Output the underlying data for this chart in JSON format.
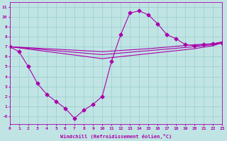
{
  "xlabel": "Windchill (Refroidissement éolien,°C)",
  "xlim": [
    0,
    23
  ],
  "ylim": [
    -0.8,
    11.5
  ],
  "ytick_vals": [
    0,
    1,
    2,
    3,
    4,
    5,
    6,
    7,
    8,
    9,
    10,
    11
  ],
  "ytick_labels": [
    "-0",
    "1",
    "2",
    "3",
    "4",
    "5",
    "6",
    "7",
    "8",
    "9",
    "10",
    "11"
  ],
  "xticks": [
    0,
    1,
    2,
    3,
    4,
    5,
    6,
    7,
    8,
    9,
    10,
    11,
    12,
    13,
    14,
    15,
    16,
    17,
    18,
    19,
    20,
    21,
    22,
    23
  ],
  "bg_color": "#c0e4e4",
  "line_color": "#aa00aa",
  "grid_color": "#99cccc",
  "s1_x": [
    0,
    1,
    2,
    3,
    4,
    5,
    6,
    7,
    8,
    9,
    10,
    11,
    12,
    13,
    14,
    15,
    16,
    17,
    18,
    19,
    20,
    21,
    22,
    23
  ],
  "s1_y": [
    7.0,
    6.5,
    5.0,
    3.3,
    2.2,
    1.5,
    0.8,
    -0.2,
    0.6,
    1.2,
    2.0,
    5.5,
    8.2,
    10.4,
    10.6,
    10.2,
    9.3,
    8.2,
    7.8,
    7.2,
    7.1,
    7.2,
    7.3,
    7.4
  ],
  "s2_x": [
    0,
    10,
    20,
    22,
    23
  ],
  "s2_y": [
    7.0,
    5.8,
    6.8,
    7.1,
    7.4
  ],
  "s3_x": [
    0,
    10,
    15,
    20,
    22,
    23
  ],
  "s3_y": [
    7.0,
    6.2,
    6.6,
    7.0,
    7.2,
    7.4
  ],
  "s4_x": [
    0,
    10,
    15,
    20,
    22,
    23
  ],
  "s4_y": [
    7.0,
    6.5,
    6.8,
    7.2,
    7.3,
    7.5
  ]
}
